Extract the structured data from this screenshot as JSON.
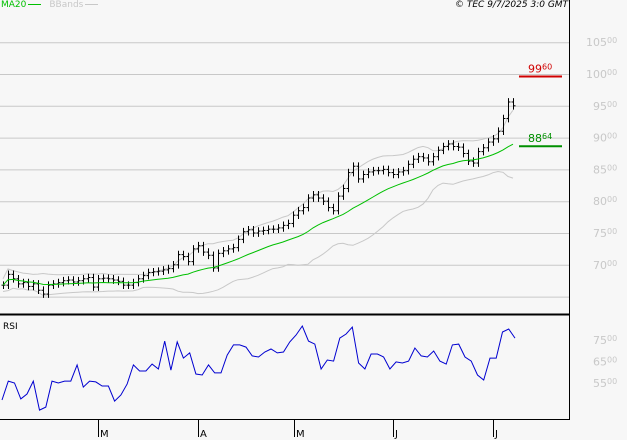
{
  "header": {
    "legend": [
      {
        "name": "MA20",
        "color": "#00c000"
      },
      {
        "name": "BBands",
        "color": "#c8c8c8"
      }
    ],
    "copyright": "© TEC 9/7/2025 3:0 GMT"
  },
  "price_axis": {
    "labels": [
      {
        "main": "105",
        "sup": "00",
        "value": 105
      },
      {
        "main": "100",
        "sup": "00",
        "value": 100
      },
      {
        "main": "95",
        "sup": "00",
        "value": 95
      },
      {
        "main": "90",
        "sup": "00",
        "value": 90
      },
      {
        "main": "85",
        "sup": "00",
        "value": 85
      },
      {
        "main": "80",
        "sup": "00",
        "value": 80
      },
      {
        "main": "75",
        "sup": "00",
        "value": 75
      },
      {
        "main": "70",
        "sup": "00",
        "value": 70
      }
    ]
  },
  "markers": {
    "resistance": {
      "main": "99",
      "sup": "60",
      "value": 99.6,
      "color": "#d00000"
    },
    "support": {
      "main": "88",
      "sup": "64",
      "value": 88.64,
      "color": "#009000"
    }
  },
  "rsi_panel": {
    "title": "RSI",
    "labels": [
      {
        "main": "75",
        "sup": "00",
        "value": 75
      },
      {
        "main": "65",
        "sup": "00",
        "value": 65
      },
      {
        "main": "55",
        "sup": "00",
        "value": 55
      }
    ]
  },
  "x_axis": {
    "months": [
      "M",
      "A",
      "M",
      "J",
      "J"
    ]
  },
  "chart_data": {
    "type": "bar",
    "price": {
      "ylim": [
        65,
        107
      ],
      "grid": true,
      "closes": [
        66.8,
        68.5,
        67.8,
        67.0,
        67.2,
        66.6,
        67.0,
        66.0,
        65.4,
        66.8,
        67.0,
        67.2,
        67.5,
        67.6,
        67.3,
        67.5,
        67.8,
        68.0,
        66.5,
        67.8,
        67.9,
        67.8,
        67.6,
        67.4,
        66.8,
        66.8,
        67.2,
        67.8,
        68.3,
        68.8,
        68.9,
        69.0,
        69.2,
        69.4,
        70.0,
        71.6,
        71.3,
        70.5,
        72.5,
        73.0,
        72.0,
        71.5,
        69.5,
        71.8,
        72.2,
        72.5,
        72.7,
        74.0,
        75.2,
        75.5,
        75.0,
        75.3,
        75.4,
        75.6,
        75.6,
        75.8,
        76.2,
        76.5,
        77.8,
        78.5,
        79.0,
        80.5,
        81.0,
        80.5,
        80.0,
        79.0,
        78.5,
        80.8,
        82.0,
        84.5,
        85.5,
        83.5,
        84.2,
        84.6,
        84.8,
        84.8,
        85.0,
        84.5,
        84.2,
        84.6,
        84.8,
        85.8,
        86.6,
        87.0,
        86.8,
        86.2,
        87.0,
        88.0,
        88.6,
        89.0,
        88.6,
        88.5,
        87.5,
        86.3,
        86.0,
        87.8,
        88.4,
        89.3,
        89.8,
        91.0,
        93.0,
        95.6,
        95.0
      ]
    },
    "rsi": {
      "ylim": [
        40,
        86
      ],
      "values": [
        47.1,
        55.9,
        55.0,
        47.6,
        49.9,
        55.9,
        42.4,
        43.8,
        55.9,
        55.0,
        55.9,
        55.9,
        63.4,
        53.1,
        55.9,
        55.5,
        53.6,
        53.6,
        46.6,
        49.4,
        54.5,
        63.4,
        60.6,
        60.6,
        63.8,
        61.5,
        74.5,
        61.0,
        74.1,
        66.6,
        69.0,
        59.2,
        58.7,
        63.4,
        59.7,
        59.7,
        68.0,
        72.7,
        72.7,
        71.7,
        67.6,
        67.1,
        69.4,
        70.8,
        69.0,
        69.4,
        74.1,
        77.3,
        81.5,
        74.5,
        73.1,
        61.5,
        65.7,
        65.2,
        75.9,
        77.8,
        81.0,
        64.3,
        61.5,
        68.5,
        68.5,
        67.1,
        61.5,
        64.8,
        64.3,
        65.2,
        71.3,
        67.6,
        67.1,
        69.9,
        65.2,
        63.8,
        72.7,
        73.1,
        67.1,
        65.2,
        58.7,
        56.4,
        66.6,
        66.6,
        78.7,
        80.1,
        75.9
      ]
    }
  }
}
